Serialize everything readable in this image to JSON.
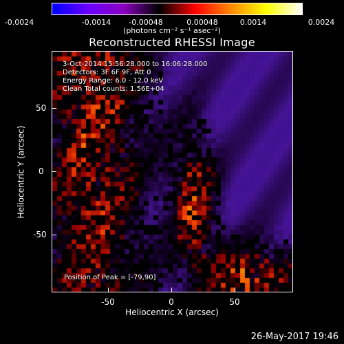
{
  "colorbar": {
    "ticks": [
      "-0.0024",
      "-0.0014",
      "-0.00048",
      "0.00048",
      "0.0014",
      "0.0024"
    ],
    "units": "(photons cm⁻² s⁻¹ asec⁻²)",
    "colors": [
      "#0000ff",
      "#6a00ff",
      "#8a00c0",
      "#000000",
      "#ff0000",
      "#ff8800",
      "#ffff00",
      "#ffffff"
    ]
  },
  "title": "Reconstructed RHESSI Image",
  "annotations": {
    "line1": "3-Oct-2014 15:56:28.000 to 16:06:28.000",
    "line2": "Detectors: 3F 6F 9F, Att 0",
    "line3": "Energy Range: 6.0 - 12.0 keV",
    "line4": "Clean    Total counts: 1.56E+04",
    "peak": "Position of Peak = [-79,90]"
  },
  "axes": {
    "xlabel": "Heliocentric X (arcsec)",
    "ylabel": "Heliocentric Y (arcsec)",
    "xticks": [
      "-50",
      "0",
      "50"
    ],
    "yticks": [
      "50",
      "0",
      "-50"
    ]
  },
  "footer": {
    "date": "26-May-2017 19:46"
  }
}
